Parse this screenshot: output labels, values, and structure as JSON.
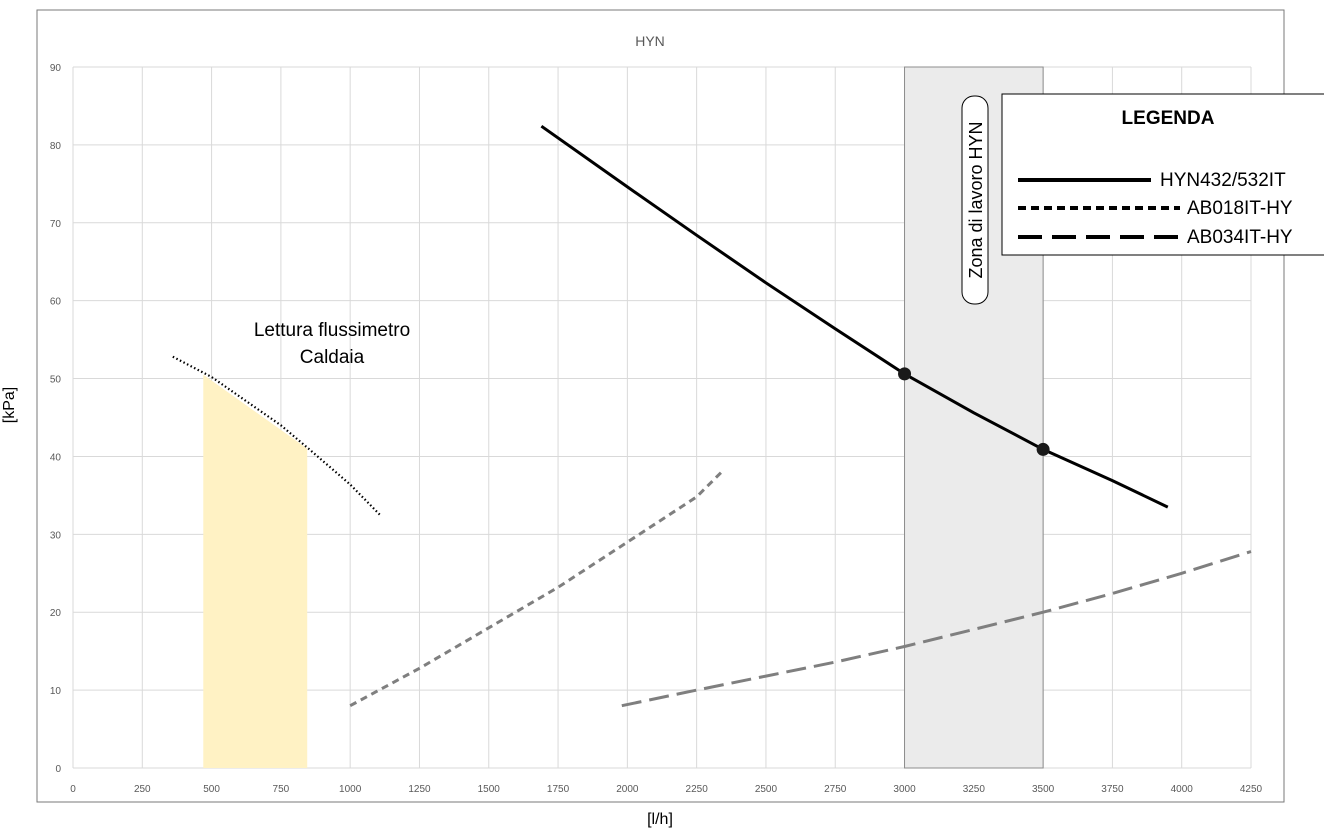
{
  "chart_data": {
    "type": "line",
    "title": "HYN",
    "xlabel": "[l/h]",
    "ylabel": "[kPa]",
    "xlim": [
      0,
      4250
    ],
    "ylim": [
      0,
      90
    ],
    "x_ticks": [
      "0",
      "250",
      "500",
      "750",
      "1000",
      "1250",
      "1500",
      "1750",
      "2000",
      "2250",
      "2500",
      "2750",
      "3000",
      "3250",
      "3500",
      "3750",
      "4000",
      "4250"
    ],
    "y_ticks": [
      "0",
      "10",
      "20",
      "30",
      "40",
      "50",
      "60",
      "70",
      "80",
      "90"
    ],
    "grid": true,
    "legend_title": "LEGENDA",
    "legend_position": "top-right",
    "series": [
      {
        "name": "HYN432/532IT",
        "style": "solid",
        "color": "#000000",
        "points": [
          [
            1690,
            82.4
          ],
          [
            2000,
            74.6
          ],
          [
            2250,
            68.4
          ],
          [
            2500,
            62.3
          ],
          [
            2750,
            56.4
          ],
          [
            3000,
            50.6
          ],
          [
            3250,
            45.6
          ],
          [
            3500,
            40.9
          ],
          [
            3750,
            36.9
          ],
          [
            3950,
            33.5
          ]
        ],
        "markers": [
          [
            3000,
            50.6
          ],
          [
            3500,
            40.9
          ]
        ]
      },
      {
        "name": "AB018IT-HY",
        "style": "dashed-short",
        "color": "#7f7f7f",
        "points": [
          [
            1000,
            8.0
          ],
          [
            1250,
            12.8
          ],
          [
            1500,
            18.0
          ],
          [
            1750,
            23.2
          ],
          [
            2000,
            29.0
          ],
          [
            2250,
            34.8
          ],
          [
            2340,
            38.0
          ]
        ]
      },
      {
        "name": "AB034IT-HY",
        "style": "dashed-long",
        "color": "#7f7f7f",
        "points": [
          [
            1980,
            8.0
          ],
          [
            2250,
            10.0
          ],
          [
            2500,
            11.8
          ],
          [
            2750,
            13.6
          ],
          [
            3000,
            15.6
          ],
          [
            3250,
            17.8
          ],
          [
            3500,
            20.0
          ],
          [
            3750,
            22.4
          ],
          [
            4000,
            25.0
          ],
          [
            4250,
            27.8
          ]
        ]
      },
      {
        "name": "Lettura flussimetro Caldaia",
        "style": "dotted",
        "color": "#000000",
        "points": [
          [
            360,
            52.8
          ],
          [
            500,
            50.2
          ],
          [
            750,
            44.0
          ],
          [
            850,
            41.0
          ],
          [
            1000,
            36.4
          ],
          [
            1110,
            32.4
          ]
        ]
      }
    ],
    "shaded_regions": [
      {
        "label": "Lettura flussimetro Caldaia",
        "x_range": [
          470,
          845
        ],
        "y_top": [
          50.5,
          41.0
        ],
        "color": "#fff2c4"
      },
      {
        "label": "Zona di lavoro HYN",
        "x_range": [
          3000,
          3500
        ],
        "y_range": [
          0,
          90
        ],
        "color": "#ebebeb"
      }
    ],
    "annotations": {
      "boiler_line1": "Lettura flussimetro",
      "boiler_line2": "Caldaia",
      "work_zone": "Zona di lavoro HYN"
    }
  }
}
